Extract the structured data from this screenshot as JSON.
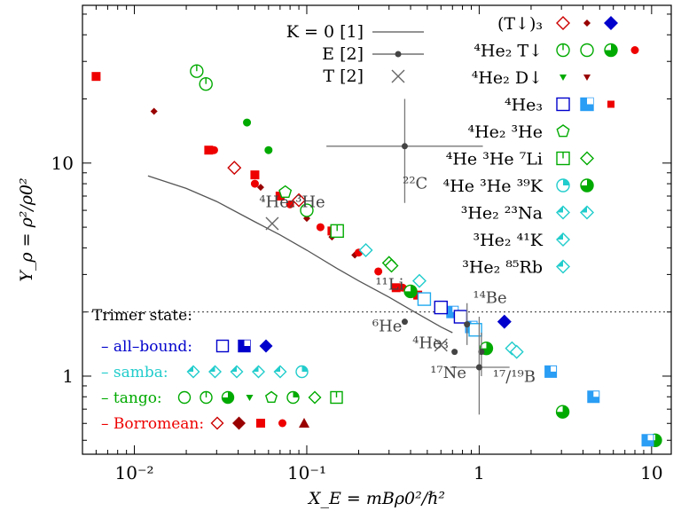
{
  "chart_data": {
    "type": "scatter",
    "xscale": "log",
    "yscale": "log",
    "xlim": [
      0.005,
      13
    ],
    "ylim": [
      0.43,
      55
    ],
    "xlabel": "X_E = mBρ0²/ℏ²",
    "ylabel": "Y_ρ = ρ²/ρ0²",
    "x_ticks": [
      {
        "v": 0.01,
        "label": "10⁻²"
      },
      {
        "v": 0.1,
        "label": "10⁻¹"
      },
      {
        "v": 1,
        "label": "1"
      },
      {
        "v": 10,
        "label": "10"
      }
    ],
    "y_ticks": [
      {
        "v": 1,
        "label": "1"
      },
      {
        "v": 10,
        "label": "10"
      }
    ],
    "dotted_line_y": 2.0,
    "theory_curve": {
      "name": "K = 0 [1]",
      "x": [
        0.012,
        0.02,
        0.03,
        0.05,
        0.07,
        0.1,
        0.15,
        0.2,
        0.3,
        0.4,
        0.5,
        0.6,
        0.7
      ],
      "y": [
        8.7,
        7.6,
        6.6,
        5.3,
        4.6,
        3.9,
        3.2,
        2.8,
        2.35,
        2.05,
        1.85,
        1.7,
        1.6
      ]
    },
    "exp_E": [
      {
        "label": "²²C",
        "x": 0.37,
        "y": 12,
        "xerr": [
          0.13,
          1.05
        ],
        "yerr": [
          6.5,
          20
        ]
      },
      {
        "label": "⁶He",
        "x": 0.37,
        "y": 1.8,
        "xerr": null,
        "yerr": null
      },
      {
        "label": "⁴He₃",
        "x": 0.72,
        "y": 1.3,
        "xerr": null,
        "yerr": null
      },
      {
        "label": "¹⁴Be",
        "x": 0.85,
        "y": 1.75,
        "xerr": null,
        "yerr": [
          1.4,
          2.2
        ]
      },
      {
        "label": "¹⁷Ne",
        "x": 1.03,
        "y": 1.3,
        "xerr": null,
        "yerr": [
          1.0,
          1.6
        ]
      },
      {
        "label": "¹⁷/¹⁹B",
        "x": 1.0,
        "y": 1.1,
        "xerr": [
          0.68,
          1.5
        ],
        "yerr": [
          0.66,
          1.9
        ]
      }
    ],
    "exp_T": [
      {
        "label": "⁴He₂³He",
        "x": 0.063,
        "y": 5.2
      },
      {
        "label": "¹¹Li",
        "x": 0.6,
        "y": 1.4
      }
    ],
    "point_labels": [
      {
        "text": "²²C",
        "x": 0.36,
        "y": 7.6
      },
      {
        "text": "⁴He₂³He",
        "x": 0.053,
        "y": 6.2
      },
      {
        "text": "¹¹Li",
        "x": 0.25,
        "y": 2.55
      },
      {
        "text": "⁶He",
        "x": 0.24,
        "y": 1.62
      },
      {
        "text": "⁴He₃",
        "x": 0.41,
        "y": 1.35
      },
      {
        "text": "¹⁴Be",
        "x": 0.92,
        "y": 2.2
      },
      {
        "text": "¹⁷Ne",
        "x": 0.52,
        "y": 0.98
      },
      {
        "text": "¹⁷/¹⁹B",
        "x": 1.2,
        "y": 0.94
      }
    ],
    "series": [
      {
        "marker": "dmd-open",
        "color": "#cc0000",
        "points": [
          [
            0.038,
            9.5
          ],
          [
            0.09,
            6.7
          ]
        ]
      },
      {
        "marker": "dmd-small",
        "color": "#990000",
        "points": [
          [
            0.013,
            17.5
          ],
          [
            0.054,
            7.7
          ],
          [
            0.1,
            5.5
          ],
          [
            0.14,
            4.5
          ],
          [
            0.19,
            3.7
          ]
        ]
      },
      {
        "marker": "dmd-fill",
        "color": "#0000cc",
        "points": [
          [
            1.4,
            1.8
          ]
        ]
      },
      {
        "marker": "circ-bar",
        "color": "#00aa00",
        "points": [
          [
            0.023,
            27
          ],
          [
            0.026,
            23.5
          ]
        ]
      },
      {
        "marker": "circ-fill",
        "color": "#00aa00",
        "points": [
          [
            0.045,
            15.5
          ],
          [
            0.06,
            11.5
          ]
        ]
      },
      {
        "marker": "circ-open",
        "color": "#00aa00",
        "points": [
          [
            0.1,
            6
          ]
        ]
      },
      {
        "marker": "circ-half",
        "color": "#00aa00",
        "points": [
          [
            1.1,
            1.35
          ],
          [
            3.05,
            0.68
          ],
          [
            10.5,
            0.5
          ]
        ]
      },
      {
        "marker": "sq-fill",
        "color": "#ee0000",
        "points": [
          [
            0.006,
            25.5
          ],
          [
            0.027,
            11.5
          ],
          [
            0.05,
            8.8
          ],
          [
            0.07,
            7
          ],
          [
            0.14,
            4.8
          ],
          [
            0.33,
            2.6
          ],
          [
            0.44,
            2.4
          ]
        ]
      },
      {
        "marker": "circ-small",
        "color": "#ee0000",
        "points": [
          [
            0.029,
            11.5
          ],
          [
            0.05,
            8
          ],
          [
            0.08,
            6.4
          ],
          [
            0.12,
            5
          ],
          [
            0.2,
            3.8
          ],
          [
            0.26,
            3.1
          ],
          [
            0.36,
            2.6
          ]
        ]
      },
      {
        "marker": "sq-blue",
        "color": "#2a9df4",
        "points": [
          [
            0.7,
            2.0
          ],
          [
            0.9,
            1.7
          ],
          [
            2.6,
            1.05
          ],
          [
            4.6,
            0.8
          ],
          [
            9.5,
            0.5
          ]
        ]
      },
      {
        "marker": "sq-open",
        "color": "#0000cc",
        "points": [
          [
            0.6,
            2.1
          ],
          [
            0.78,
            1.9
          ]
        ]
      },
      {
        "marker": "pent-open",
        "color": "#00aa00",
        "points": [
          [
            0.075,
            7.3
          ]
        ]
      },
      {
        "marker": "sqbar-open",
        "color": "#00aa00",
        "points": [
          [
            0.15,
            4.8
          ]
        ]
      },
      {
        "marker": "dmd-open",
        "color": "#00aa00",
        "points": [
          [
            0.3,
            3.4
          ],
          [
            0.31,
            3.3
          ]
        ]
      },
      {
        "marker": "circ-half",
        "color": "#00aa00",
        "points": [
          [
            0.4,
            2.5
          ]
        ]
      },
      {
        "marker": "dmd-open",
        "color": "#22cccc",
        "points": [
          [
            0.22,
            3.9
          ],
          [
            0.45,
            2.8
          ],
          [
            1.55,
            1.35
          ],
          [
            1.65,
            1.3
          ]
        ]
      },
      {
        "marker": "sq-open",
        "color": "#22aaee",
        "points": [
          [
            0.48,
            2.3
          ],
          [
            0.95,
            1.65
          ]
        ]
      }
    ]
  },
  "legend_right": [
    {
      "label": "(T↓)₃",
      "symbols": [
        "dmd-open:#cc0000",
        "dmd-small:#990000",
        "dmd-fill:#0000cc"
      ]
    },
    {
      "label": "⁴He₂ T↓",
      "symbols": [
        "circ-bar:#00aa00",
        "circ-open:#00aa00",
        "circ-half:#00aa00",
        "circ-small:#ee0000"
      ]
    },
    {
      "label": "⁴He₂ D↓",
      "symbols": [
        "tri-small:#00aa00",
        "tri-small:#990000"
      ]
    },
    {
      "label": "⁴He₃",
      "symbols": [
        "sq-open:#0000cc",
        "sq-quad:#2a9df4",
        "sq-small:#ee0000"
      ]
    },
    {
      "label": "⁴He₂ ³He",
      "symbols": [
        "pent-open:#00aa00"
      ]
    },
    {
      "label": "⁴He ³He ⁷Li",
      "symbols": [
        "sqbar-open:#00aa00",
        "dmd-open:#00aa00"
      ]
    },
    {
      "label": "⁴He ³He ³⁹K",
      "symbols": [
        "circ-q:#22cccc",
        "circ-half:#00aa00"
      ]
    },
    {
      "label": "³He₂ ²³Na",
      "symbols": [
        "dmd-q:#22cccc",
        "dmd-q:#22cccc"
      ]
    },
    {
      "label": "³He₂ ⁴¹K",
      "symbols": [
        "dmd-q:#22cccc"
      ]
    },
    {
      "label": "³He₂ ⁸⁵Rb",
      "symbols": [
        "dmd-q:#22cccc"
      ]
    }
  ],
  "legend_middle": [
    {
      "label": "K = 0 [1]",
      "kind": "line"
    },
    {
      "label": "E [2]",
      "kind": "errdot"
    },
    {
      "label": "T [2]",
      "kind": "cross"
    }
  ],
  "legend_left": {
    "title": "Trimer state:",
    "rows": [
      {
        "label": "– all–bound:",
        "color": "#0000cc",
        "symbols": [
          "sq-open:#0000cc",
          "sq-quad:#0000cc",
          "dmd-fill:#0000cc"
        ]
      },
      {
        "label": "– samba:",
        "color": "#22cccc",
        "symbols": [
          "dmd-q:#22cccc",
          "dmd-q:#22cccc",
          "dmd-q:#22cccc",
          "dmd-q:#22cccc",
          "dmd-q:#22cccc",
          "circ-q:#22cccc"
        ]
      },
      {
        "label": "– tango:",
        "color": "#00aa00",
        "symbols": [
          "circ-open:#00aa00",
          "circ-bar:#00aa00",
          "circ-half:#00aa00",
          "tri-small:#00aa00",
          "pent-open:#00aa00",
          "circ-q:#00aa00",
          "dmd-open:#00aa00",
          "sqbar-open:#00aa00"
        ]
      },
      {
        "label": "– Borromean:",
        "color": "#ee0000",
        "symbols": [
          "dmd-open:#cc0000",
          "dmd-fill:#990000",
          "sq-fill:#ee0000",
          "circ-fill:#ee0000",
          "tri-fill:#990000"
        ]
      }
    ]
  }
}
